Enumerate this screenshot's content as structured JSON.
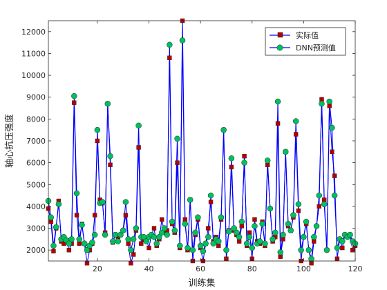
{
  "chart_data": {
    "type": "line",
    "title": "",
    "xlabel": "训练集",
    "ylabel": "轴心抗压强度",
    "xlim": [
      1,
      120
    ],
    "ylim": [
      1500,
      12500
    ],
    "x_ticks": [
      20,
      40,
      60,
      80,
      100,
      120
    ],
    "y_ticks": [
      2000,
      3000,
      4000,
      5000,
      6000,
      7000,
      8000,
      9000,
      10000,
      11000,
      12000
    ],
    "grid": false,
    "legend_position": "top-right",
    "x": [
      1,
      2,
      3,
      4,
      5,
      6,
      7,
      8,
      9,
      10,
      11,
      12,
      13,
      14,
      15,
      16,
      17,
      18,
      19,
      20,
      21,
      22,
      23,
      24,
      25,
      26,
      27,
      28,
      29,
      30,
      31,
      32,
      33,
      34,
      35,
      36,
      37,
      38,
      39,
      40,
      41,
      42,
      43,
      44,
      45,
      46,
      47,
      48,
      49,
      50,
      51,
      52,
      53,
      54,
      55,
      56,
      57,
      58,
      59,
      60,
      61,
      62,
      63,
      64,
      65,
      66,
      67,
      68,
      69,
      70,
      71,
      72,
      73,
      74,
      75,
      76,
      77,
      78,
      79,
      80,
      81,
      82,
      83,
      84,
      85,
      86,
      87,
      88,
      89,
      90,
      91,
      92,
      93,
      94,
      95,
      96,
      97,
      98,
      99,
      100,
      101,
      102,
      103,
      104,
      105,
      106,
      107,
      108,
      109,
      110,
      111,
      112,
      113,
      114,
      115,
      116,
      117,
      118,
      119,
      120
    ],
    "series": [
      {
        "name": "实际值",
        "color": "#b40000",
        "line_color": "#0000ff",
        "marker": "square",
        "values": [
          3900,
          3300,
          1950,
          3000,
          4250,
          2400,
          2300,
          2450,
          2000,
          2300,
          8750,
          3600,
          2300,
          3200,
          2300,
          1400,
          2000,
          2300,
          3600,
          7000,
          4300,
          4150,
          2800,
          8700,
          5900,
          2350,
          2700,
          2600,
          2700,
          2900,
          3600,
          2300,
          1400,
          1800,
          2900,
          6700,
          2300,
          2500,
          2500,
          2100,
          2700,
          3000,
          2200,
          2500,
          3400,
          2800,
          2900,
          10800,
          3200,
          2800,
          6000,
          2100,
          12500,
          3400,
          2000,
          4300,
          1500,
          2700,
          3400,
          2100,
          1500,
          2300,
          3000,
          4200,
          2400,
          2600,
          2200,
          3400,
          7500,
          1600,
          2900,
          5800,
          2900,
          2700,
          2400,
          3100,
          6300,
          2200,
          2800,
          1600,
          3400,
          2400,
          2300,
          3300,
          2200,
          5900,
          3900,
          2400,
          2600,
          7800,
          1700,
          2500,
          6500,
          3100,
          2900,
          3500,
          7300,
          3800,
          1500,
          2600,
          3200,
          2000,
          1400,
          2400,
          3100,
          4000,
          8900,
          4300,
          2000,
          8600,
          6500,
          5400,
          1600,
          2500,
          2100,
          2700,
          2600,
          2700,
          2000,
          2200
        ]
      },
      {
        "name": "DNN预测值",
        "color": "#00c060",
        "line_color": "#0000ff",
        "marker": "circle",
        "values": [
          4250,
          3500,
          2200,
          3050,
          4100,
          2500,
          2600,
          2450,
          2300,
          2500,
          9050,
          4600,
          2500,
          3150,
          2300,
          2000,
          2200,
          2350,
          2700,
          7500,
          4150,
          4200,
          2700,
          8700,
          6300,
          2400,
          2700,
          2400,
          2700,
          2900,
          4200,
          2500,
          2000,
          2500,
          3000,
          7700,
          2600,
          2600,
          2400,
          2600,
          2700,
          2600,
          2300,
          2600,
          2800,
          3000,
          2700,
          11400,
          3300,
          2900,
          7100,
          2200,
          11600,
          3200,
          2100,
          4300,
          2000,
          2800,
          3500,
          2200,
          1950,
          2300,
          2600,
          4500,
          2300,
          2500,
          2400,
          3500,
          7500,
          2000,
          2850,
          6200,
          3000,
          2800,
          2600,
          3300,
          6000,
          2300,
          2600,
          2100,
          3100,
          2300,
          2400,
          3200,
          2300,
          6100,
          3900,
          2500,
          2800,
          8800,
          1900,
          2700,
          6500,
          3200,
          2900,
          3600,
          7900,
          4100,
          2000,
          2600,
          3300,
          2000,
          1600,
          2600,
          3100,
          4500,
          8700,
          4100,
          2000,
          8800,
          7600,
          4500,
          2100,
          2500,
          2400,
          2700,
          2600,
          2700,
          2400,
          2300
        ]
      }
    ]
  }
}
